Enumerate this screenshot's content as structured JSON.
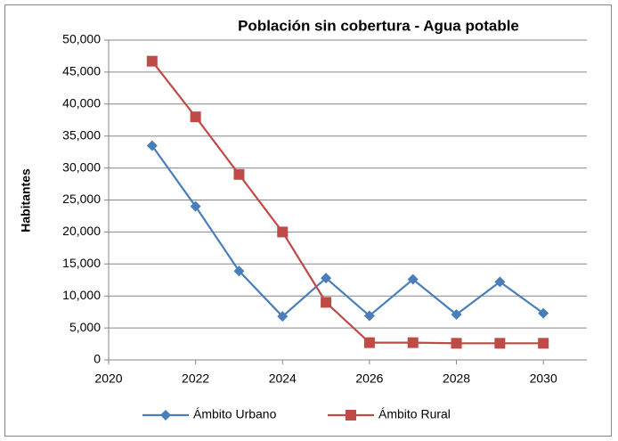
{
  "chart_data": {
    "type": "line",
    "title": "Población sin cobertura - Agua potable",
    "y_label": "Habitantes",
    "x": [
      2021,
      2022,
      2023,
      2024,
      2025,
      2026,
      2027,
      2028,
      2029,
      2030
    ],
    "series": [
      {
        "name": "Ámbito Urbano",
        "color": "#4a7ebb",
        "marker": "diamond",
        "values": [
          33500,
          24000,
          13900,
          6800,
          12800,
          6900,
          12600,
          7100,
          12200,
          7300
        ]
      },
      {
        "name": "Ámbito Rural",
        "color": "#be4b48",
        "marker": "square",
        "values": [
          46700,
          38000,
          29000,
          20000,
          9000,
          2700,
          2700,
          2600,
          2600,
          2600
        ]
      }
    ],
    "xlim": [
      2020,
      2031
    ],
    "xticks": [
      2020,
      2022,
      2024,
      2026,
      2028,
      2030
    ],
    "ylim": [
      0,
      50000
    ],
    "yticks": [
      0,
      {
        "value": 5000,
        "label": "5,000"
      },
      {
        "value": 10000,
        "label": "10,000"
      },
      {
        "value": 15000,
        "label": "15,000"
      },
      {
        "value": 20000,
        "label": "20,000"
      },
      {
        "value": 25000,
        "label": "25,000"
      },
      {
        "value": 30000,
        "label": "30,000"
      },
      {
        "value": 35000,
        "label": "35,000"
      },
      {
        "value": 40000,
        "label": "40,000"
      },
      {
        "value": 45000,
        "label": "45,000"
      },
      {
        "value": 50000,
        "label": "50,000"
      }
    ],
    "grid": true,
    "legend": "bottom"
  }
}
